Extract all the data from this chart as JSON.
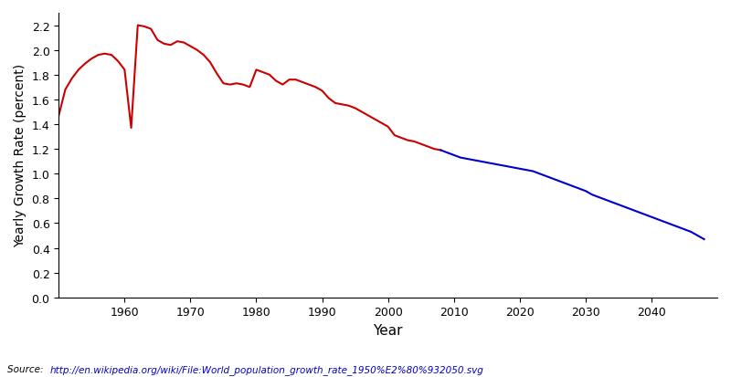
{
  "title": "",
  "xlabel": "Year",
  "ylabel": "Yearly Growth Rate (percent)",
  "source_label": "Source: ",
  "source_url": "http://en.wikipedia.org/wiki/File:World_population_growth_rate_1950%E2%80%932050.svg",
  "red_color": "#cc0000",
  "blue_color": "#0000cc",
  "background_color": "#ffffff",
  "ylim": [
    0,
    2.3
  ],
  "xlim": [
    1950,
    2050
  ],
  "yticks": [
    0,
    0.2,
    0.4,
    0.6,
    0.8,
    1.0,
    1.2,
    1.4,
    1.6,
    1.8,
    2.0,
    2.2
  ],
  "xticks": [
    1960,
    1970,
    1980,
    1990,
    2000,
    2010,
    2020,
    2030,
    2040
  ],
  "red_data": {
    "years": [
      1950,
      1951,
      1952,
      1953,
      1954,
      1955,
      1956,
      1957,
      1958,
      1959,
      1960,
      1961,
      1962,
      1963,
      1964,
      1965,
      1966,
      1967,
      1968,
      1969,
      1970,
      1971,
      1972,
      1973,
      1974,
      1975,
      1976,
      1977,
      1978,
      1979,
      1980,
      1981,
      1982,
      1983,
      1984,
      1985,
      1986,
      1987,
      1988,
      1989,
      1990,
      1991,
      1992,
      1993,
      1994,
      1995,
      1996,
      1997,
      1998,
      1999,
      2000,
      2001,
      2002,
      2003,
      2004,
      2005,
      2006,
      2007,
      2008
    ],
    "values": [
      1.47,
      1.68,
      1.77,
      1.84,
      1.89,
      1.93,
      1.96,
      1.97,
      1.96,
      1.91,
      1.84,
      1.37,
      2.2,
      2.19,
      2.17,
      2.08,
      2.05,
      2.04,
      2.07,
      2.06,
      2.03,
      2.0,
      1.96,
      1.9,
      1.81,
      1.73,
      1.72,
      1.73,
      1.72,
      1.7,
      1.84,
      1.82,
      1.8,
      1.75,
      1.72,
      1.76,
      1.76,
      1.74,
      1.72,
      1.7,
      1.67,
      1.61,
      1.57,
      1.56,
      1.55,
      1.53,
      1.5,
      1.47,
      1.44,
      1.41,
      1.38,
      1.31,
      1.29,
      1.27,
      1.26,
      1.24,
      1.22,
      1.2,
      1.19
    ]
  },
  "blue_data": {
    "years": [
      2008,
      2009,
      2010,
      2011,
      2012,
      2013,
      2014,
      2015,
      2016,
      2017,
      2018,
      2019,
      2020,
      2021,
      2022,
      2023,
      2024,
      2025,
      2026,
      2027,
      2028,
      2029,
      2030,
      2031,
      2032,
      2033,
      2034,
      2035,
      2036,
      2037,
      2038,
      2039,
      2040,
      2041,
      2042,
      2043,
      2044,
      2045,
      2046,
      2047,
      2048
    ],
    "values": [
      1.19,
      1.17,
      1.15,
      1.13,
      1.12,
      1.11,
      1.1,
      1.09,
      1.08,
      1.07,
      1.06,
      1.05,
      1.04,
      1.03,
      1.02,
      1.0,
      0.98,
      0.96,
      0.94,
      0.92,
      0.9,
      0.88,
      0.86,
      0.83,
      0.81,
      0.79,
      0.77,
      0.75,
      0.73,
      0.71,
      0.69,
      0.67,
      0.65,
      0.63,
      0.61,
      0.59,
      0.57,
      0.55,
      0.53,
      0.5,
      0.47
    ]
  }
}
